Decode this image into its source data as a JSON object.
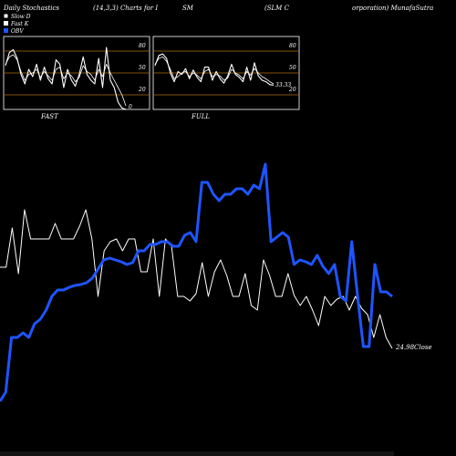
{
  "header": {
    "col1": "Daily Stochastics",
    "col2": "(14,3,3) Charts for I",
    "col3": "SM",
    "col4": "(SLM C",
    "col5": "orporation) MunafaSutra"
  },
  "legend": [
    {
      "label": "Slow D",
      "color": "#ffffff"
    },
    {
      "label": "Fast K",
      "color": "#ffffff"
    },
    {
      "label": "OBV",
      "color": "#1f55ff"
    }
  ],
  "panels": {
    "fast": {
      "label": "FAST",
      "ticks": [
        "80",
        "50",
        "20"
      ],
      "end_value": "0"
    },
    "full": {
      "label": "FULL",
      "ticks": [
        "80",
        "50",
        "20"
      ],
      "end_value": "33.33"
    }
  },
  "close_label": "24.98",
  "close_suffix": "Close",
  "colors": {
    "background": "#000000",
    "grid": "#b06a10",
    "obv": "#1f55ff",
    "price": "#ffffff"
  },
  "chart_data": [
    {
      "type": "line",
      "panel": "FAST",
      "ylim": [
        0,
        100
      ],
      "series": [
        {
          "name": "Slow D",
          "values": [
            62,
            72,
            75,
            68,
            52,
            40,
            48,
            50,
            55,
            44,
            52,
            46,
            40,
            55,
            58,
            42,
            50,
            46,
            38,
            44,
            60,
            52,
            48,
            40,
            55,
            45,
            62,
            50,
            40,
            30,
            20,
            5
          ]
        },
        {
          "name": "Fast K",
          "values": [
            60,
            78,
            82,
            70,
            48,
            35,
            55,
            45,
            62,
            40,
            58,
            42,
            35,
            68,
            62,
            30,
            55,
            40,
            32,
            48,
            72,
            48,
            40,
            35,
            70,
            30,
            85,
            40,
            30,
            10,
            2,
            0
          ]
        }
      ]
    },
    {
      "type": "line",
      "panel": "FULL",
      "ylim": [
        0,
        100
      ],
      "series": [
        {
          "name": "Slow D",
          "values": [
            62,
            70,
            72,
            66,
            55,
            42,
            45,
            50,
            52,
            45,
            50,
            47,
            42,
            52,
            55,
            45,
            48,
            46,
            40,
            43,
            55,
            50,
            47,
            42,
            52,
            47,
            56,
            50,
            45,
            42,
            38,
            35
          ]
        },
        {
          "name": "Fast K",
          "values": [
            60,
            74,
            76,
            70,
            50,
            38,
            52,
            48,
            56,
            42,
            54,
            44,
            38,
            58,
            58,
            40,
            52,
            42,
            36,
            46,
            62,
            48,
            44,
            38,
            58,
            40,
            64,
            46,
            40,
            38,
            34,
            33.33
          ]
        }
      ]
    },
    {
      "type": "line",
      "panel": "main",
      "series": [
        {
          "name": "Price",
          "values": [
            293,
            293,
            250,
            300,
            230,
            262,
            262,
            262,
            262,
            245,
            262,
            262,
            262,
            248,
            230,
            262,
            325,
            275,
            265,
            262,
            275,
            262,
            262,
            298,
            298,
            262,
            325,
            262,
            270,
            325,
            325,
            330,
            322,
            288,
            325,
            298,
            285,
            302,
            325,
            325,
            300,
            335,
            340,
            285,
            302,
            325,
            325,
            300,
            324,
            335,
            325,
            340,
            357,
            325,
            335,
            328,
            325,
            340,
            325,
            338,
            345,
            370,
            345,
            370,
            382
          ]
        },
        {
          "name": "OBV",
          "values": [
            440,
            430,
            370,
            370,
            365,
            370,
            355,
            350,
            340,
            325,
            318,
            318,
            315,
            313,
            312,
            310,
            305,
            295,
            285,
            283,
            285,
            287,
            290,
            288,
            275,
            275,
            268,
            268,
            265,
            265,
            270,
            270,
            258,
            255,
            265,
            200,
            200,
            213,
            220,
            213,
            213,
            207,
            207,
            213,
            203,
            207,
            180,
            265,
            260,
            255,
            260,
            290,
            285,
            287,
            290,
            280,
            292,
            300,
            290,
            325,
            330,
            265,
            325,
            380,
            380,
            290,
            320,
            320,
            325
          ]
        }
      ]
    }
  ]
}
